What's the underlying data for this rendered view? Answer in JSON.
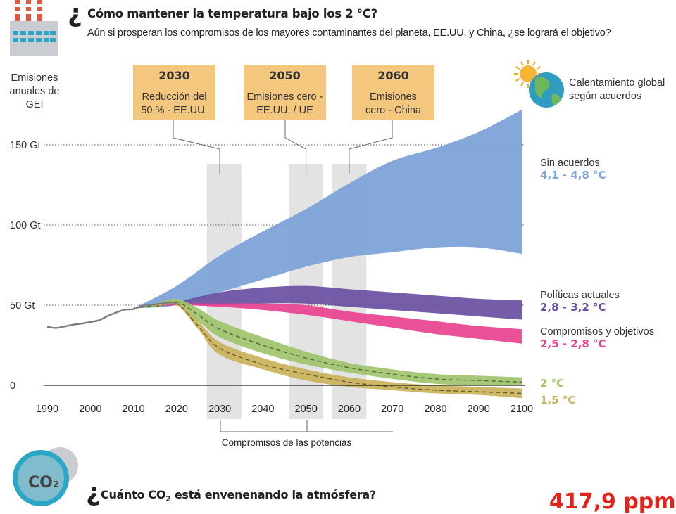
{
  "header": {
    "question_mark": "¿",
    "title": "Cómo mantener la temperatura bajo los 2 °C?",
    "subtitle": "Aún si prosperan los compromisos de los mayores contaminantes del planeta, EE.UU. y China, ¿se logrará el objetivo?"
  },
  "left_label": [
    "Emisiones",
    "anuales de",
    "GEI"
  ],
  "right_header": [
    "Calentamiento global",
    "según acuerdos"
  ],
  "milestones": [
    {
      "year_label": "2030",
      "lines": [
        "Reducción del",
        "50 % - EE.UU."
      ],
      "year": 2030
    },
    {
      "year_label": "2050",
      "lines": [
        "Emisiones cero -",
        "EE.UU. / UE"
      ],
      "year": 2050
    },
    {
      "year_label": "2060",
      "lines": [
        "Emisiones",
        "cero - China"
      ],
      "year": 2060
    }
  ],
  "bracket_label": "Compromisos de las potencias",
  "bottom": {
    "question_mark": "¿",
    "title_pre": "Cuánto CO",
    "title_sub": "2",
    "title_post": " está envenenando la atmósfera?",
    "co2_badge": "CO₂",
    "ppm_value": "417,9 ppm"
  },
  "colors": {
    "historical": "#7d7d7d",
    "sin_acuerdos": "#7ea3d9",
    "politicas": "#6a4fa3",
    "compromisos": "#e8428f",
    "dos_grados": "#9fc46b",
    "uno_cinco": "#c9b25a",
    "label_box": "#f4c77e",
    "shade": "#e3e3e3",
    "ppm": "#e2231a"
  },
  "chart_data": {
    "type": "area",
    "title": "Cómo mantener la temperatura bajo los 2 °C?",
    "ylabel": "Emisiones anuales de GEI",
    "xlabel": "",
    "xlim": [
      1990,
      2100
    ],
    "ylim": [
      -10,
      170
    ],
    "x_ticks": [
      1990,
      2000,
      2010,
      2020,
      2030,
      2040,
      2050,
      2060,
      2070,
      2080,
      2090,
      2100
    ],
    "y_ticks": [
      {
        "value": 0,
        "label": "0"
      },
      {
        "value": 50,
        "label": "50 Gt"
      },
      {
        "value": 100,
        "label": "100 Gt"
      },
      {
        "value": 150,
        "label": "150 Gt"
      }
    ],
    "highlight_periods": [
      [
        2027,
        2035
      ],
      [
        2046,
        2054
      ],
      [
        2056,
        2064
      ]
    ],
    "historical": {
      "x": [
        1990,
        1992,
        1994,
        1996,
        1998,
        2000,
        2002,
        2004,
        2006,
        2008,
        2010,
        2012,
        2015,
        2018,
        2020
      ],
      "y": [
        36.5,
        35.8,
        36.7,
        37.8,
        38.5,
        39.5,
        40.6,
        43.2,
        45.4,
        47.2,
        47.5,
        49.5,
        50.5,
        51.5,
        51.5
      ]
    },
    "series": [
      {
        "name": "Sin acuerdos",
        "temp": "4,1 - 4,8 °C",
        "x": [
          2010,
          2020,
          2030,
          2040,
          2050,
          2060,
          2070,
          2080,
          2090,
          2100
        ],
        "upper": [
          48,
          62,
          81,
          96,
          110,
          126,
          140,
          148,
          158,
          172
        ],
        "lower": [
          48,
          50,
          58,
          66,
          74,
          80,
          83,
          86,
          86,
          82
        ]
      },
      {
        "name": "Políticas actuales",
        "temp": "2,8 - 3,2 °C",
        "x": [
          2015,
          2020,
          2030,
          2040,
          2050,
          2060,
          2070,
          2080,
          2090,
          2100
        ],
        "upper": [
          50,
          52,
          58,
          61,
          62,
          60,
          58,
          56,
          54,
          53
        ],
        "lower": [
          49,
          50,
          50,
          51,
          51,
          49,
          47,
          45,
          43,
          41
        ]
      },
      {
        "name": "Compromisos y objetivos",
        "temp": "2,5 - 2,8 °C",
        "x": [
          2015,
          2020,
          2030,
          2040,
          2050,
          2060,
          2070,
          2080,
          2090,
          2100
        ],
        "upper": [
          50,
          51,
          51,
          51,
          50,
          46,
          43,
          40,
          37,
          35
        ],
        "lower": [
          49,
          50,
          49,
          47,
          44,
          40,
          36,
          32,
          29,
          26
        ]
      },
      {
        "name": "2 °C",
        "temp": "2 °C",
        "x": [
          2010,
          2015,
          2020,
          2025,
          2030,
          2040,
          2050,
          2060,
          2070,
          2080,
          2090,
          2100
        ],
        "upper": [
          48,
          51,
          54,
          48,
          40,
          30,
          21,
          14,
          10,
          7,
          6,
          5
        ],
        "lower": [
          48,
          49,
          50,
          40,
          30,
          20,
          13,
          8,
          4,
          1,
          0,
          0
        ],
        "mid": [
          48,
          50,
          52,
          44,
          35,
          25,
          17,
          11,
          7,
          4,
          3,
          2
        ]
      },
      {
        "name": "1,5 °C",
        "temp": "1,5 °C",
        "x": [
          2015,
          2020,
          2025,
          2030,
          2040,
          2050,
          2060,
          2070,
          2080,
          2090,
          2100
        ],
        "upper": [
          50,
          52,
          40,
          27,
          17,
          10,
          5,
          2,
          0,
          -1,
          -2
        ],
        "lower": [
          49,
          50,
          35,
          19,
          10,
          3,
          -1,
          -3,
          -5,
          -6,
          -8
        ],
        "mid": [
          49,
          51,
          37,
          23,
          13,
          7,
          2,
          -1,
          -3,
          -4,
          -5
        ]
      }
    ]
  }
}
